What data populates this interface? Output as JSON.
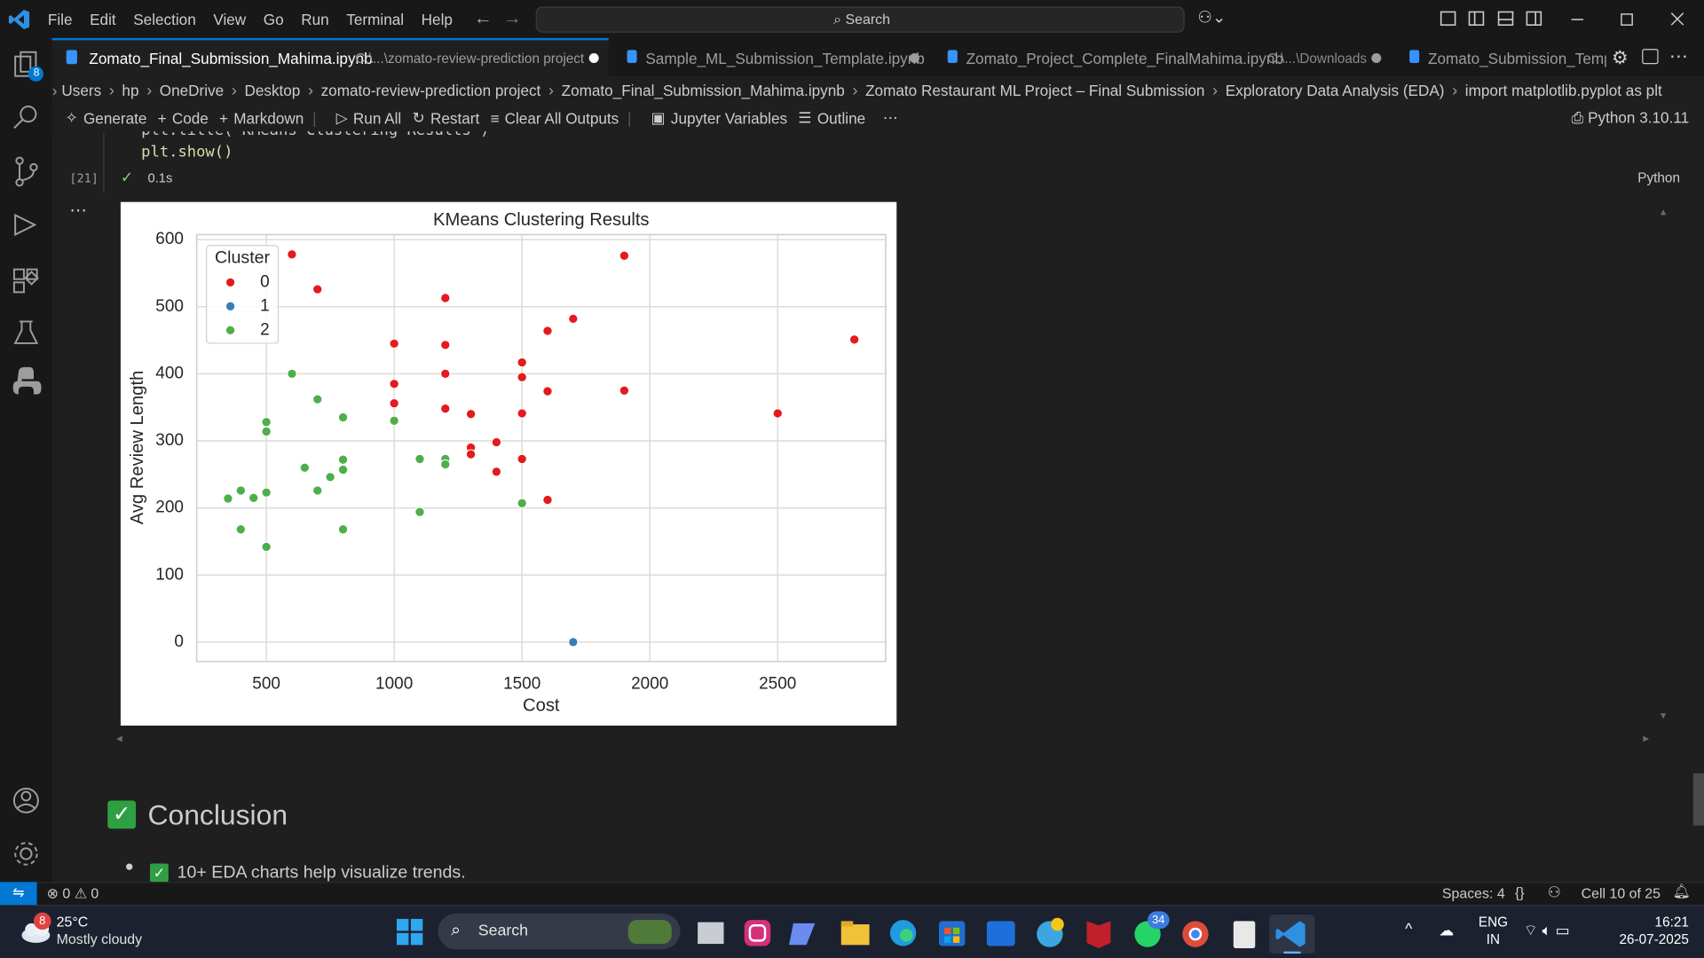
{
  "menu": [
    "File",
    "Edit",
    "Selection",
    "View",
    "Go",
    "Run",
    "Terminal",
    "Help"
  ],
  "search": "Search",
  "activity_badge": 8,
  "tabs": [
    {
      "title": "Zomato_Final_Submission_Mahima.ipynb",
      "path": "C:\\...\\zomato-review-prediction project"
    },
    {
      "title": "Sample_ML_Submission_Template.ipynb"
    },
    {
      "title": "Zomato_Project_Complete_FinalMahima.ipynb",
      "path": "C:\\...\\Downloads"
    },
    {
      "title": "Zomato_Submission_Templa"
    }
  ],
  "breadcrumbs": [
    "Users",
    "hp",
    "OneDrive",
    "Desktop",
    "zomato-review-prediction project",
    "Zomato_Final_Submission_Mahima.ipynb",
    "Zomato Restaurant ML Project – Final Submission",
    "Exploratory Data Analysis (EDA)",
    "import matplotlib.pyplot as plt"
  ],
  "toolbar": [
    "Generate",
    "Code",
    "Markdown",
    "Run All",
    "Restart",
    "Clear All Outputs",
    "Jupyter Variables",
    "Outline"
  ],
  "kernel": "Python 3.10.11",
  "cell": {
    "code": [
      "plt.title('KMeans Clustering Results')",
      "plt.show()"
    ],
    "execution_count": "[21]",
    "duration": "0.1s",
    "language": "Python"
  },
  "markdown": {
    "heading": "Conclusion",
    "bullets": [
      "10+ EDA charts help visualize trends."
    ]
  },
  "status_bar": {
    "errors": 0,
    "warnings": 0,
    "spaces": "Spaces: 4",
    "cell": "Cell 10 of 25"
  },
  "taskbar": {
    "weather_badge": 8,
    "temperature": "25°C",
    "weather": "Mostly cloudy",
    "search": "Search",
    "whatsapp_badge": 34,
    "language": "ENG",
    "region": "IN",
    "time": "16:21",
    "date": "26-07-2025"
  },
  "chart_data": {
    "type": "scatter",
    "title": "KMeans Clustering Results",
    "x_label": "Cost",
    "y_label": "Avg Review Length",
    "legend_title": "Cluster",
    "legend": "upper left",
    "grid": true,
    "xlim": [
      227.5,
      2922.5
    ],
    "ylim": [
      -28.9,
      607.5
    ],
    "xticks": [
      500,
      1000,
      1500,
      2000,
      2500
    ],
    "yticks": [
      0,
      100,
      200,
      300,
      400,
      500,
      600
    ],
    "series": [
      {
        "name": "0",
        "color": "#e41a1c",
        "x": [
          600,
          700,
          1200,
          1900,
          2800,
          1700,
          1600,
          1000,
          1200,
          1500,
          1500,
          1200,
          1000,
          1600,
          1900,
          1000,
          1200,
          1300,
          1500,
          2500,
          1400,
          1300,
          1300,
          1500,
          1400,
          1600
        ],
        "values": [
          578,
          526,
          513,
          576,
          451,
          482,
          464,
          445,
          443,
          417,
          395,
          400,
          385,
          374,
          375,
          356,
          348,
          340,
          341,
          341,
          298,
          290,
          280,
          273,
          254,
          212
        ]
      },
      {
        "name": "1",
        "color": "#377eb8",
        "x": [
          1700
        ],
        "values": [
          0
        ]
      },
      {
        "name": "2",
        "color": "#4daf4a",
        "x": [
          600,
          700,
          800,
          1000,
          500,
          500,
          1100,
          1200,
          1200,
          800,
          800,
          650,
          750,
          700,
          400,
          500,
          450,
          350,
          1500,
          1100,
          400,
          800,
          500
        ],
        "values": [
          400,
          362,
          335,
          330,
          328,
          314,
          273,
          273,
          265,
          272,
          257,
          260,
          246,
          226,
          226,
          223,
          215,
          214,
          207,
          194,
          168,
          168,
          142
        ]
      }
    ]
  }
}
